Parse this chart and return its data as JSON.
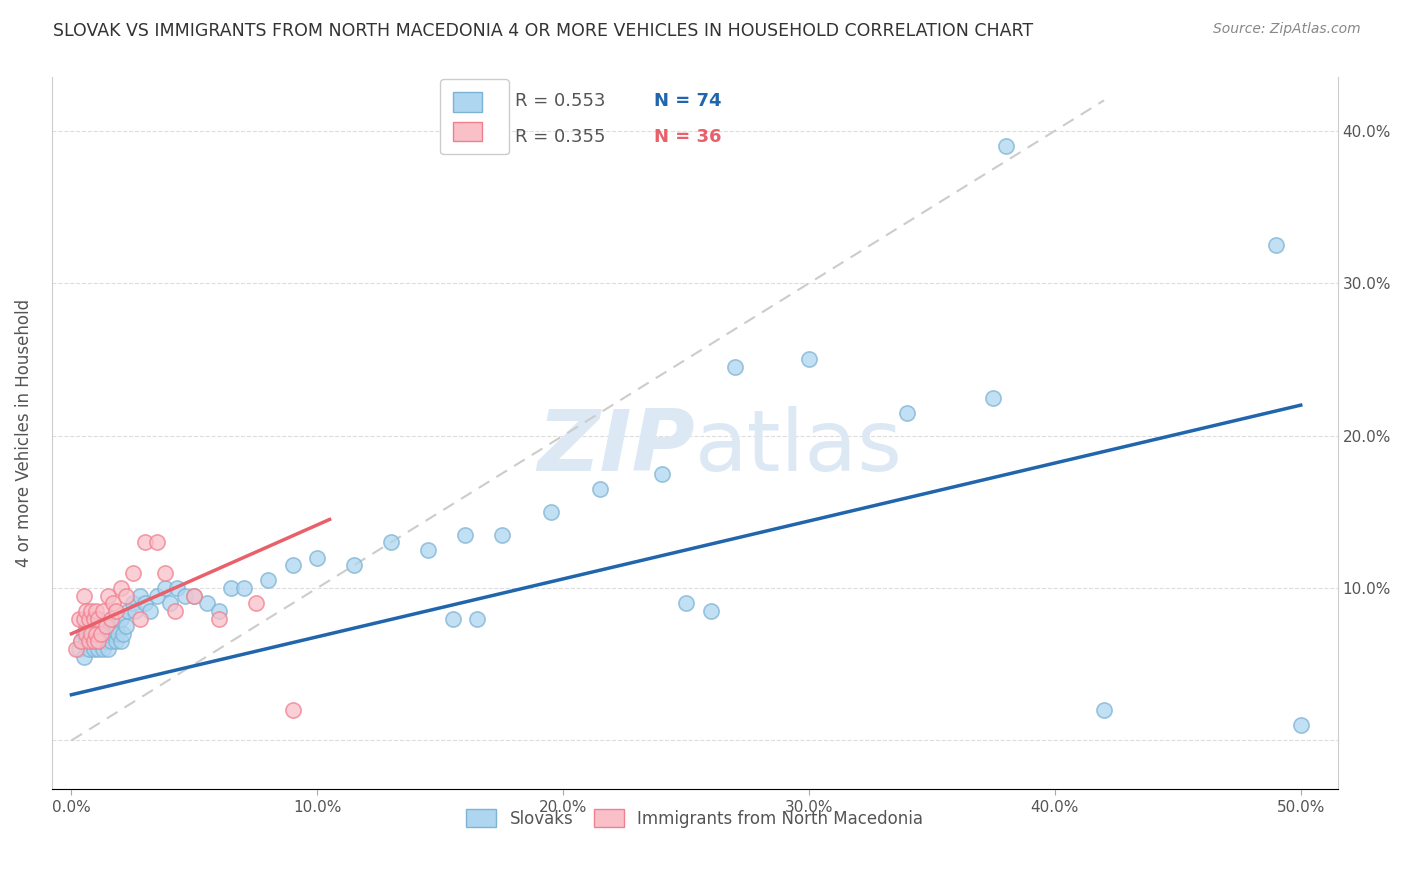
{
  "title": "SLOVAK VS IMMIGRANTS FROM NORTH MACEDONIA 4 OR MORE VEHICLES IN HOUSEHOLD CORRELATION CHART",
  "source": "Source: ZipAtlas.com",
  "ylabel": "4 or more Vehicles in Household",
  "legend_blue_r": "R = 0.553",
  "legend_blue_n": "N = 74",
  "legend_pink_r": "R = 0.355",
  "legend_pink_n": "N = 36",
  "legend1_label": "Slovaks",
  "legend2_label": "Immigrants from North Macedonia",
  "blue_fill_color": "#AED6F1",
  "blue_edge_color": "#7FB3D3",
  "pink_fill_color": "#F9C0C8",
  "pink_edge_color": "#F08090",
  "blue_line_color": "#2166AC",
  "pink_line_color": "#E8606A",
  "dashed_line_color": "#CCCCCC",
  "watermark_color": "#DCE9F5",
  "blue_r_color": "#2166AC",
  "blue_n_color": "#2166AC",
  "pink_r_color": "#E8606A",
  "pink_n_color": "#E8606A",
  "blue_line_x0": 0.0,
  "blue_line_y0": 0.03,
  "blue_line_x1": 0.5,
  "blue_line_y1": 0.22,
  "pink_line_x0": 0.0,
  "pink_line_y0": 0.07,
  "pink_line_x1": 0.105,
  "pink_line_y1": 0.145,
  "dash_line_x0": 0.0,
  "dash_line_y0": 0.0,
  "dash_line_x1": 0.42,
  "dash_line_y1": 0.42,
  "xlim_min": -0.008,
  "xlim_max": 0.515,
  "ylim_min": -0.032,
  "ylim_max": 0.435,
  "xtick_vals": [
    0.0,
    0.1,
    0.2,
    0.3,
    0.4,
    0.5
  ],
  "xticklabels": [
    "0.0%",
    "10.0%",
    "20.0%",
    "30.0%",
    "40.0%",
    "50.0%"
  ],
  "ytick_vals": [
    0.0,
    0.1,
    0.2,
    0.3,
    0.4
  ],
  "right_yticklabels": [
    "",
    "10.0%",
    "20.0%",
    "30.0%",
    "40.0%"
  ],
  "blue_x": [
    0.003,
    0.004,
    0.005,
    0.005,
    0.006,
    0.006,
    0.007,
    0.007,
    0.008,
    0.008,
    0.009,
    0.009,
    0.01,
    0.01,
    0.01,
    0.011,
    0.011,
    0.012,
    0.012,
    0.013,
    0.013,
    0.014,
    0.014,
    0.015,
    0.015,
    0.016,
    0.016,
    0.017,
    0.018,
    0.018,
    0.019,
    0.02,
    0.02,
    0.021,
    0.022,
    0.023,
    0.025,
    0.026,
    0.028,
    0.03,
    0.032,
    0.035,
    0.038,
    0.04,
    0.043,
    0.046,
    0.05,
    0.055,
    0.06,
    0.065,
    0.07,
    0.08,
    0.09,
    0.1,
    0.115,
    0.13,
    0.145,
    0.16,
    0.175,
    0.195,
    0.215,
    0.24,
    0.27,
    0.3,
    0.34,
    0.375,
    0.49,
    0.5,
    0.25,
    0.26,
    0.155,
    0.165,
    0.42,
    0.38
  ],
  "blue_y": [
    0.06,
    0.065,
    0.07,
    0.055,
    0.065,
    0.075,
    0.06,
    0.07,
    0.065,
    0.075,
    0.06,
    0.07,
    0.065,
    0.075,
    0.08,
    0.06,
    0.07,
    0.065,
    0.075,
    0.06,
    0.07,
    0.065,
    0.075,
    0.06,
    0.07,
    0.065,
    0.075,
    0.07,
    0.065,
    0.075,
    0.07,
    0.065,
    0.08,
    0.07,
    0.075,
    0.085,
    0.09,
    0.085,
    0.095,
    0.09,
    0.085,
    0.095,
    0.1,
    0.09,
    0.1,
    0.095,
    0.095,
    0.09,
    0.085,
    0.1,
    0.1,
    0.105,
    0.115,
    0.12,
    0.115,
    0.13,
    0.125,
    0.135,
    0.135,
    0.15,
    0.165,
    0.175,
    0.245,
    0.25,
    0.215,
    0.225,
    0.325,
    0.01,
    0.09,
    0.085,
    0.08,
    0.08,
    0.02,
    0.39
  ],
  "pink_x": [
    0.002,
    0.003,
    0.004,
    0.005,
    0.005,
    0.006,
    0.006,
    0.007,
    0.007,
    0.008,
    0.008,
    0.009,
    0.009,
    0.01,
    0.01,
    0.011,
    0.011,
    0.012,
    0.013,
    0.014,
    0.015,
    0.016,
    0.017,
    0.018,
    0.02,
    0.022,
    0.025,
    0.028,
    0.03,
    0.035,
    0.038,
    0.042,
    0.05,
    0.06,
    0.075,
    0.09
  ],
  "pink_y": [
    0.06,
    0.08,
    0.065,
    0.08,
    0.095,
    0.07,
    0.085,
    0.065,
    0.08,
    0.07,
    0.085,
    0.065,
    0.08,
    0.07,
    0.085,
    0.065,
    0.08,
    0.07,
    0.085,
    0.075,
    0.095,
    0.08,
    0.09,
    0.085,
    0.1,
    0.095,
    0.11,
    0.08,
    0.13,
    0.13,
    0.11,
    0.085,
    0.095,
    0.08,
    0.09,
    0.02
  ]
}
